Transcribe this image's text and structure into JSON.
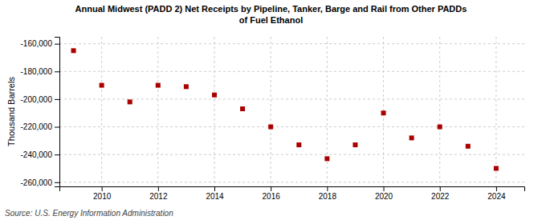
{
  "chart_data": {
    "type": "scatter",
    "title": "Annual Midwest (PADD 2) Net Receipts by Pipeline, Tanker, Barge and Rail from Other PADDs\nof Fuel Ethanol",
    "ylabel": "Thousand Barrels",
    "annotations": [
      "Source: U.S. Energy Information Administration"
    ],
    "x": [
      2009,
      2010,
      2011,
      2012,
      2013,
      2014,
      2015,
      2016,
      2017,
      2018,
      2019,
      2020,
      2021,
      2022,
      2023,
      2024
    ],
    "values": [
      -165000,
      -190000,
      -202000,
      -190000,
      -191000,
      -197000,
      -207000,
      -220000,
      -233000,
      -243000,
      -233000,
      -210000,
      -228000,
      -220000,
      -234000,
      -250000
    ],
    "color": "#AA0000",
    "marker": "square",
    "grid": true,
    "xlim": [
      2008.5,
      2025.0
    ],
    "xticks": [
      2010,
      2012,
      2014,
      2016,
      2018,
      2020,
      2022,
      2024
    ],
    "ylim": [
      -263000,
      -155000
    ],
    "yticks": [
      {
        "value": -260000,
        "label": "-260,000"
      },
      {
        "value": -240000,
        "label": "-240,000"
      },
      {
        "value": -220000,
        "label": "-220,000"
      },
      {
        "value": -200000,
        "label": "-200,000"
      },
      {
        "value": -180000,
        "label": "-180,000"
      },
      {
        "value": -160000,
        "label": "-160,000"
      }
    ]
  }
}
